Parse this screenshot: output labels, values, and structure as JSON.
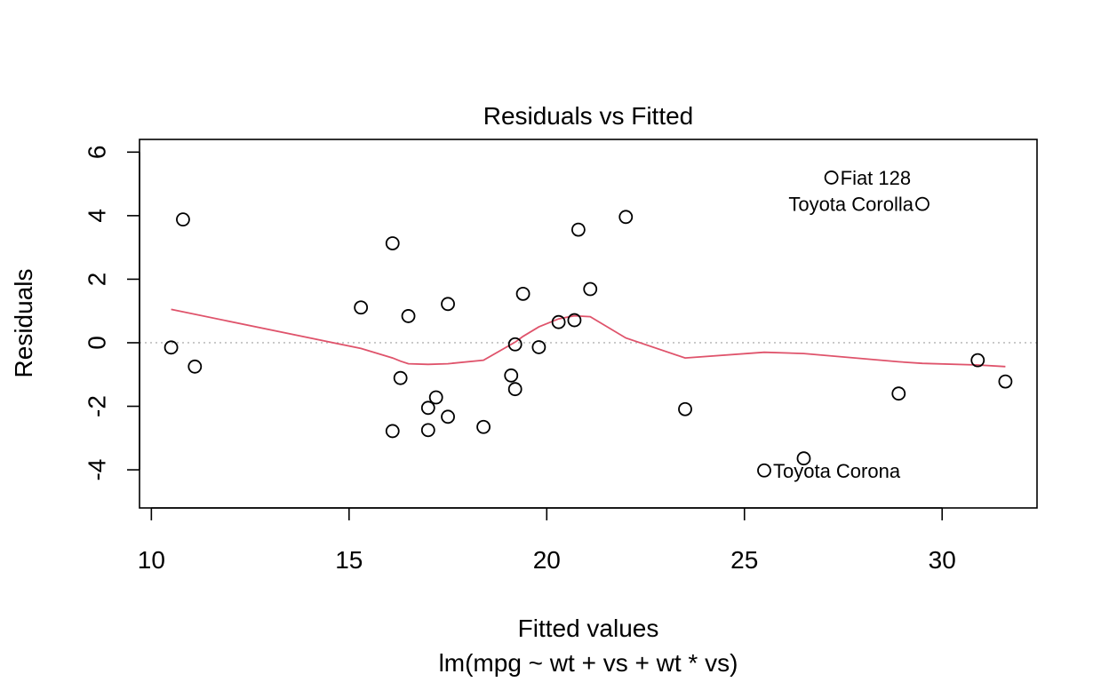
{
  "chart_data": {
    "type": "scatter",
    "title": "Residuals vs Fitted",
    "xlabel": "Fitted values",
    "xlabel_sub": "lm(mpg ~ wt + vs + wt * vs)",
    "ylabel": "Residuals",
    "xlim": [
      9.7,
      32.4
    ],
    "ylim": [
      -5.2,
      6.4
    ],
    "x_ticks": [
      10,
      15,
      20,
      25,
      30
    ],
    "y_ticks": [
      -4,
      -2,
      0,
      2,
      4,
      6
    ],
    "reference_line": 0,
    "points": [
      {
        "x": 10.8,
        "y": 3.88
      },
      {
        "x": 10.5,
        "y": -0.15
      },
      {
        "x": 11.1,
        "y": -0.75
      },
      {
        "x": 15.3,
        "y": 1.11
      },
      {
        "x": 16.1,
        "y": 3.13
      },
      {
        "x": 16.1,
        "y": -2.78
      },
      {
        "x": 16.3,
        "y": -1.11
      },
      {
        "x": 16.5,
        "y": 0.84
      },
      {
        "x": 17.0,
        "y": -2.05
      },
      {
        "x": 17.0,
        "y": -2.75
      },
      {
        "x": 17.2,
        "y": -1.72
      },
      {
        "x": 17.5,
        "y": 1.22
      },
      {
        "x": 17.5,
        "y": -2.33
      },
      {
        "x": 18.4,
        "y": -2.65
      },
      {
        "x": 19.1,
        "y": -1.03
      },
      {
        "x": 19.2,
        "y": -1.46
      },
      {
        "x": 19.2,
        "y": -0.05
      },
      {
        "x": 19.4,
        "y": 1.54
      },
      {
        "x": 19.8,
        "y": -0.14
      },
      {
        "x": 20.3,
        "y": 0.65
      },
      {
        "x": 20.7,
        "y": 0.71
      },
      {
        "x": 20.8,
        "y": 3.56
      },
      {
        "x": 21.1,
        "y": 1.69
      },
      {
        "x": 22.0,
        "y": 3.96
      },
      {
        "x": 23.5,
        "y": -2.09
      },
      {
        "x": 25.5,
        "y": -4.02
      },
      {
        "x": 26.5,
        "y": -3.64
      },
      {
        "x": 27.2,
        "y": 5.2
      },
      {
        "x": 28.9,
        "y": -1.6
      },
      {
        "x": 29.5,
        "y": 4.37
      },
      {
        "x": 30.9,
        "y": -0.55
      },
      {
        "x": 31.6,
        "y": -1.22
      }
    ],
    "smooth_line": {
      "color": "#DF536B",
      "x": [
        10.5,
        15.3,
        16.1,
        16.3,
        16.5,
        17.0,
        17.5,
        18.4,
        19.2,
        19.4,
        19.8,
        20.3,
        20.7,
        21.1,
        22.0,
        23.5,
        25.5,
        26.5,
        28.9,
        29.5,
        30.9,
        31.6
      ],
      "y": [
        1.05,
        -0.18,
        -0.48,
        -0.58,
        -0.66,
        -0.68,
        -0.66,
        -0.55,
        0.02,
        0.2,
        0.5,
        0.75,
        0.85,
        0.82,
        0.15,
        -0.48,
        -0.3,
        -0.34,
        -0.6,
        -0.65,
        -0.7,
        -0.75
      ]
    },
    "labeled_points": [
      {
        "text": "Fiat 128",
        "x": 27.2,
        "y": 5.2,
        "side": "right"
      },
      {
        "text": "Toyota Corolla",
        "x": 29.5,
        "y": 4.37,
        "side": "left"
      },
      {
        "text": "Toyota Corona",
        "x": 25.5,
        "y": -4.02,
        "side": "right"
      }
    ],
    "colors": {
      "points": "#000000",
      "smooth": "#DF536B",
      "reference": "#BEBEBE"
    },
    "grid": false
  }
}
